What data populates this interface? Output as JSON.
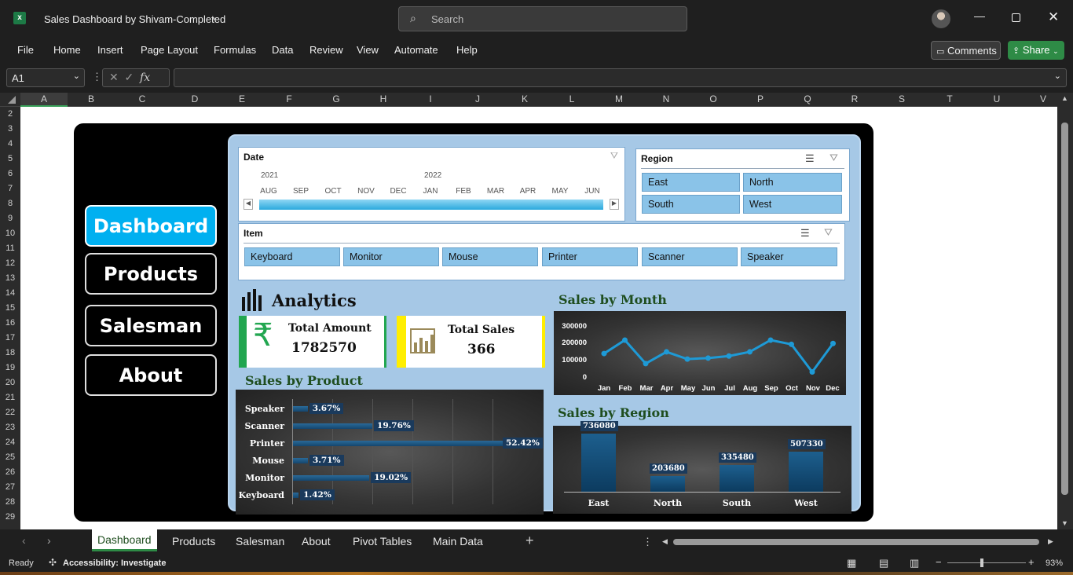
{
  "app": {
    "title": "Sales Dashboard by Shivam-Completed",
    "search_placeholder": "Search",
    "comments": "Comments",
    "share": "Share"
  },
  "menu": [
    "File",
    "Home",
    "Insert",
    "Page Layout",
    "Formulas",
    "Data",
    "Review",
    "View",
    "Automate",
    "Help"
  ],
  "formula": {
    "cell_ref": "A1",
    "fx": "fx",
    "value": ""
  },
  "columns": [
    "A",
    "B",
    "C",
    "D",
    "E",
    "F",
    "G",
    "H",
    "I",
    "J",
    "K",
    "L",
    "M",
    "N",
    "O",
    "P",
    "Q",
    "R",
    "S",
    "T",
    "U",
    "V"
  ],
  "rows": [
    "2",
    "3",
    "4",
    "5",
    "6",
    "7",
    "8",
    "9",
    "10",
    "11",
    "12",
    "13",
    "14",
    "15",
    "16",
    "17",
    "18",
    "19",
    "20",
    "21",
    "22",
    "23",
    "24",
    "25",
    "26",
    "27",
    "28",
    "29"
  ],
  "nav": {
    "dashboard": "Dashboard",
    "products": "Products",
    "salesman": "Salesman",
    "about": "About"
  },
  "slicers": {
    "date": {
      "title": "Date",
      "year1": "2021",
      "year2": "2022",
      "months": [
        "AUG",
        "SEP",
        "OCT",
        "NOV",
        "DEC",
        "JAN",
        "FEB",
        "MAR",
        "APR",
        "MAY",
        "JUN"
      ]
    },
    "region": {
      "title": "Region",
      "items": [
        "East",
        "North",
        "South",
        "West"
      ]
    },
    "item": {
      "title": "Item",
      "items": [
        "Keyboard",
        "Monitor",
        "Mouse",
        "Printer",
        "Scanner",
        "Speaker"
      ]
    }
  },
  "analytics": {
    "title": "Analytics",
    "total_amount_label": "Total Amount",
    "total_amount": "1782570",
    "total_sales_label": "Total Sales",
    "total_sales": "366"
  },
  "sections": {
    "product": "Sales by Product",
    "month": "Sales by Month",
    "region": "Sales by Region"
  },
  "chart_data": [
    {
      "type": "bar",
      "title": "Sales by Product",
      "categories": [
        "Speaker",
        "Scanner",
        "Printer",
        "Mouse",
        "Monitor",
        "Keyboard"
      ],
      "values": [
        3.67,
        19.76,
        52.42,
        3.71,
        19.02,
        1.42
      ],
      "labels": [
        "3.67%",
        "19.76%",
        "52.42%",
        "3.71%",
        "19.02%",
        "1.42%"
      ],
      "orientation": "horizontal"
    },
    {
      "type": "line",
      "title": "Sales by Month",
      "x": [
        "Jan",
        "Feb",
        "Mar",
        "Apr",
        "May",
        "Jun",
        "Jul",
        "Aug",
        "Sep",
        "Oct",
        "Nov",
        "Dec"
      ],
      "values": [
        145000,
        225000,
        85000,
        155000,
        112000,
        118000,
        130000,
        155000,
        225000,
        200000,
        35000,
        205000
      ],
      "yticks": [
        "300000",
        "200000",
        "100000",
        "0"
      ],
      "ylim": [
        0,
        300000
      ]
    },
    {
      "type": "bar",
      "title": "Sales by Region",
      "categories": [
        "East",
        "North",
        "South",
        "West"
      ],
      "values": [
        736080,
        203680,
        335480,
        507330
      ],
      "labels": [
        "736080",
        "203680",
        "335480",
        "507330"
      ]
    }
  ],
  "tabs": [
    "Dashboard",
    "Products",
    "Salesman",
    "About",
    "Pivot Tables",
    "Main Data"
  ],
  "status": {
    "ready": "Ready",
    "accessibility": "Accessibility: Investigate",
    "zoom": "93%"
  }
}
